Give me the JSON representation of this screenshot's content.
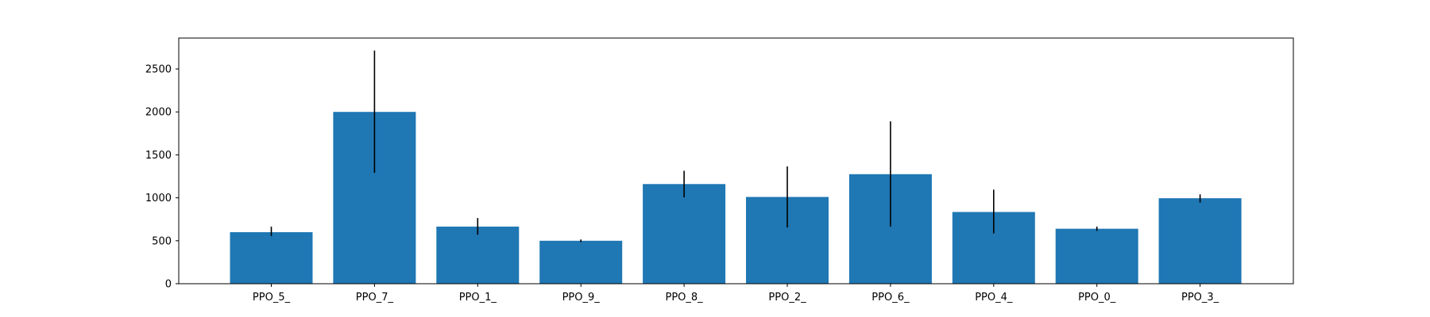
{
  "chart_data": {
    "type": "bar",
    "title": "",
    "xlabel": "",
    "ylabel": "",
    "categories": [
      "PPO_5_",
      "PPO_7_",
      "PPO_1_",
      "PPO_9_",
      "PPO_8_",
      "PPO_2_",
      "PPO_6_",
      "PPO_4_",
      "PPO_0_",
      "PPO_3_"
    ],
    "values": [
      600,
      2000,
      665,
      500,
      1160,
      1010,
      1275,
      835,
      640,
      995
    ],
    "error_low": [
      555,
      1290,
      570,
      485,
      1005,
      655,
      665,
      585,
      615,
      945
    ],
    "error_high": [
      665,
      2715,
      765,
      515,
      1315,
      1365,
      1890,
      1095,
      665,
      1040
    ],
    "ylim": [
      0,
      2860
    ],
    "yticks": [
      "0",
      "500",
      "1000",
      "1500",
      "2000",
      "2500"
    ],
    "grid": false,
    "legend": "none",
    "bar_color": "#1f77b4",
    "error_color": "#000000"
  }
}
